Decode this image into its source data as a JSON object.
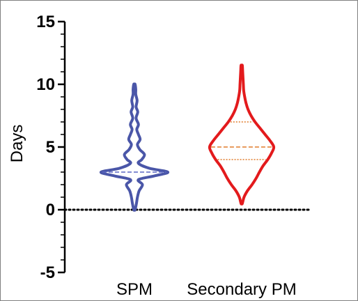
{
  "chart_data": {
    "type": "violin",
    "title": "",
    "xlabel": "",
    "ylabel": "Days",
    "ylim": [
      -5,
      15
    ],
    "ytick_labels": [
      "-5",
      "0",
      "5",
      "10",
      "15"
    ],
    "yticks": [
      -5,
      0,
      5,
      10,
      15
    ],
    "minor_tick_step": 1,
    "reference_line": {
      "y": 0,
      "style": "dotted",
      "color": "#000000"
    },
    "categories": [
      "SPM",
      "Secondary PM"
    ],
    "series": [
      {
        "color": "#4a56a8",
        "quartile_color": "#5a67c4",
        "median": 3,
        "quartiles": [],
        "profile": [
          [
            0,
            0.02
          ],
          [
            0.5,
            0.06
          ],
          [
            1.0,
            0.09
          ],
          [
            1.5,
            0.14
          ],
          [
            2.0,
            0.24
          ],
          [
            2.4,
            0.12
          ],
          [
            2.7,
            0.6
          ],
          [
            3.0,
            1.0
          ],
          [
            3.3,
            0.45
          ],
          [
            3.7,
            0.12
          ],
          [
            4.0,
            0.22
          ],
          [
            4.4,
            0.3
          ],
          [
            4.8,
            0.16
          ],
          [
            5.2,
            0.09
          ],
          [
            5.6,
            0.17
          ],
          [
            6.0,
            0.12
          ],
          [
            6.4,
            0.07
          ],
          [
            6.8,
            0.12
          ],
          [
            7.3,
            0.05
          ],
          [
            7.8,
            0.1
          ],
          [
            8.2,
            0.05
          ],
          [
            8.7,
            0.08
          ],
          [
            9.2,
            0.04
          ],
          [
            9.6,
            0.04
          ],
          [
            10.0,
            0.02
          ]
        ]
      },
      {
        "color": "#e31a1c",
        "quartile_color": "#e07b2a",
        "median": 5,
        "quartiles": [
          4,
          7
        ],
        "profile": [
          [
            0.5,
            0.02
          ],
          [
            1.0,
            0.07
          ],
          [
            1.5,
            0.17
          ],
          [
            2.0,
            0.31
          ],
          [
            2.5,
            0.43
          ],
          [
            3.0,
            0.53
          ],
          [
            3.5,
            0.64
          ],
          [
            4.0,
            0.78
          ],
          [
            4.5,
            0.89
          ],
          [
            5.0,
            0.96
          ],
          [
            5.5,
            0.85
          ],
          [
            6.0,
            0.7
          ],
          [
            6.5,
            0.55
          ],
          [
            7.0,
            0.4
          ],
          [
            7.5,
            0.28
          ],
          [
            8.0,
            0.19
          ],
          [
            8.5,
            0.13
          ],
          [
            9.0,
            0.09
          ],
          [
            9.5,
            0.06
          ],
          [
            10.0,
            0.05
          ],
          [
            10.5,
            0.04
          ],
          [
            11.0,
            0.03
          ],
          [
            11.5,
            0.02
          ]
        ]
      }
    ]
  }
}
